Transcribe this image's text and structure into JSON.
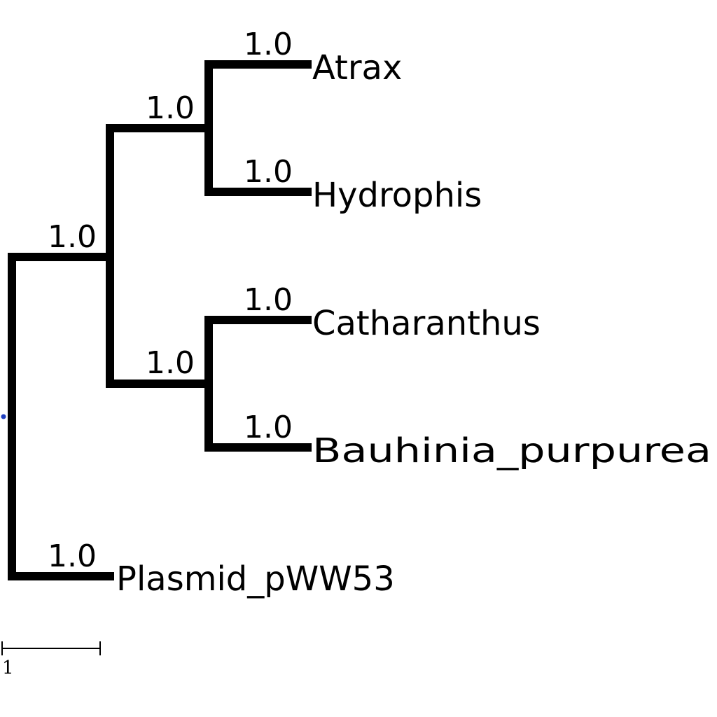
{
  "tree": {
    "leaves": [
      {
        "id": "atrax",
        "name": "Atrax",
        "support": "1.0"
      },
      {
        "id": "hydrophis",
        "name": "Hydrophis",
        "support": "1.0"
      },
      {
        "id": "catharanthus",
        "name": "Catharanthus",
        "support": "1.0"
      },
      {
        "id": "bauhinia",
        "name": "Bauhinia_purpurea",
        "support": "1.0"
      },
      {
        "id": "plasmid",
        "name": "Plasmid_pWW53",
        "support": "1.0"
      }
    ],
    "internal_nodes": [
      {
        "id": "clade-atrax-hydrophis",
        "support": "1.0"
      },
      {
        "id": "clade-catharanthus-bauhinia",
        "support": "1.0"
      },
      {
        "id": "clade-four-taxa",
        "support": "1.0"
      }
    ],
    "scale_bar": {
      "label": "1",
      "length": 1
    },
    "colors": {
      "branch": "#000000",
      "root_marker": "#1f3fbf"
    }
  }
}
